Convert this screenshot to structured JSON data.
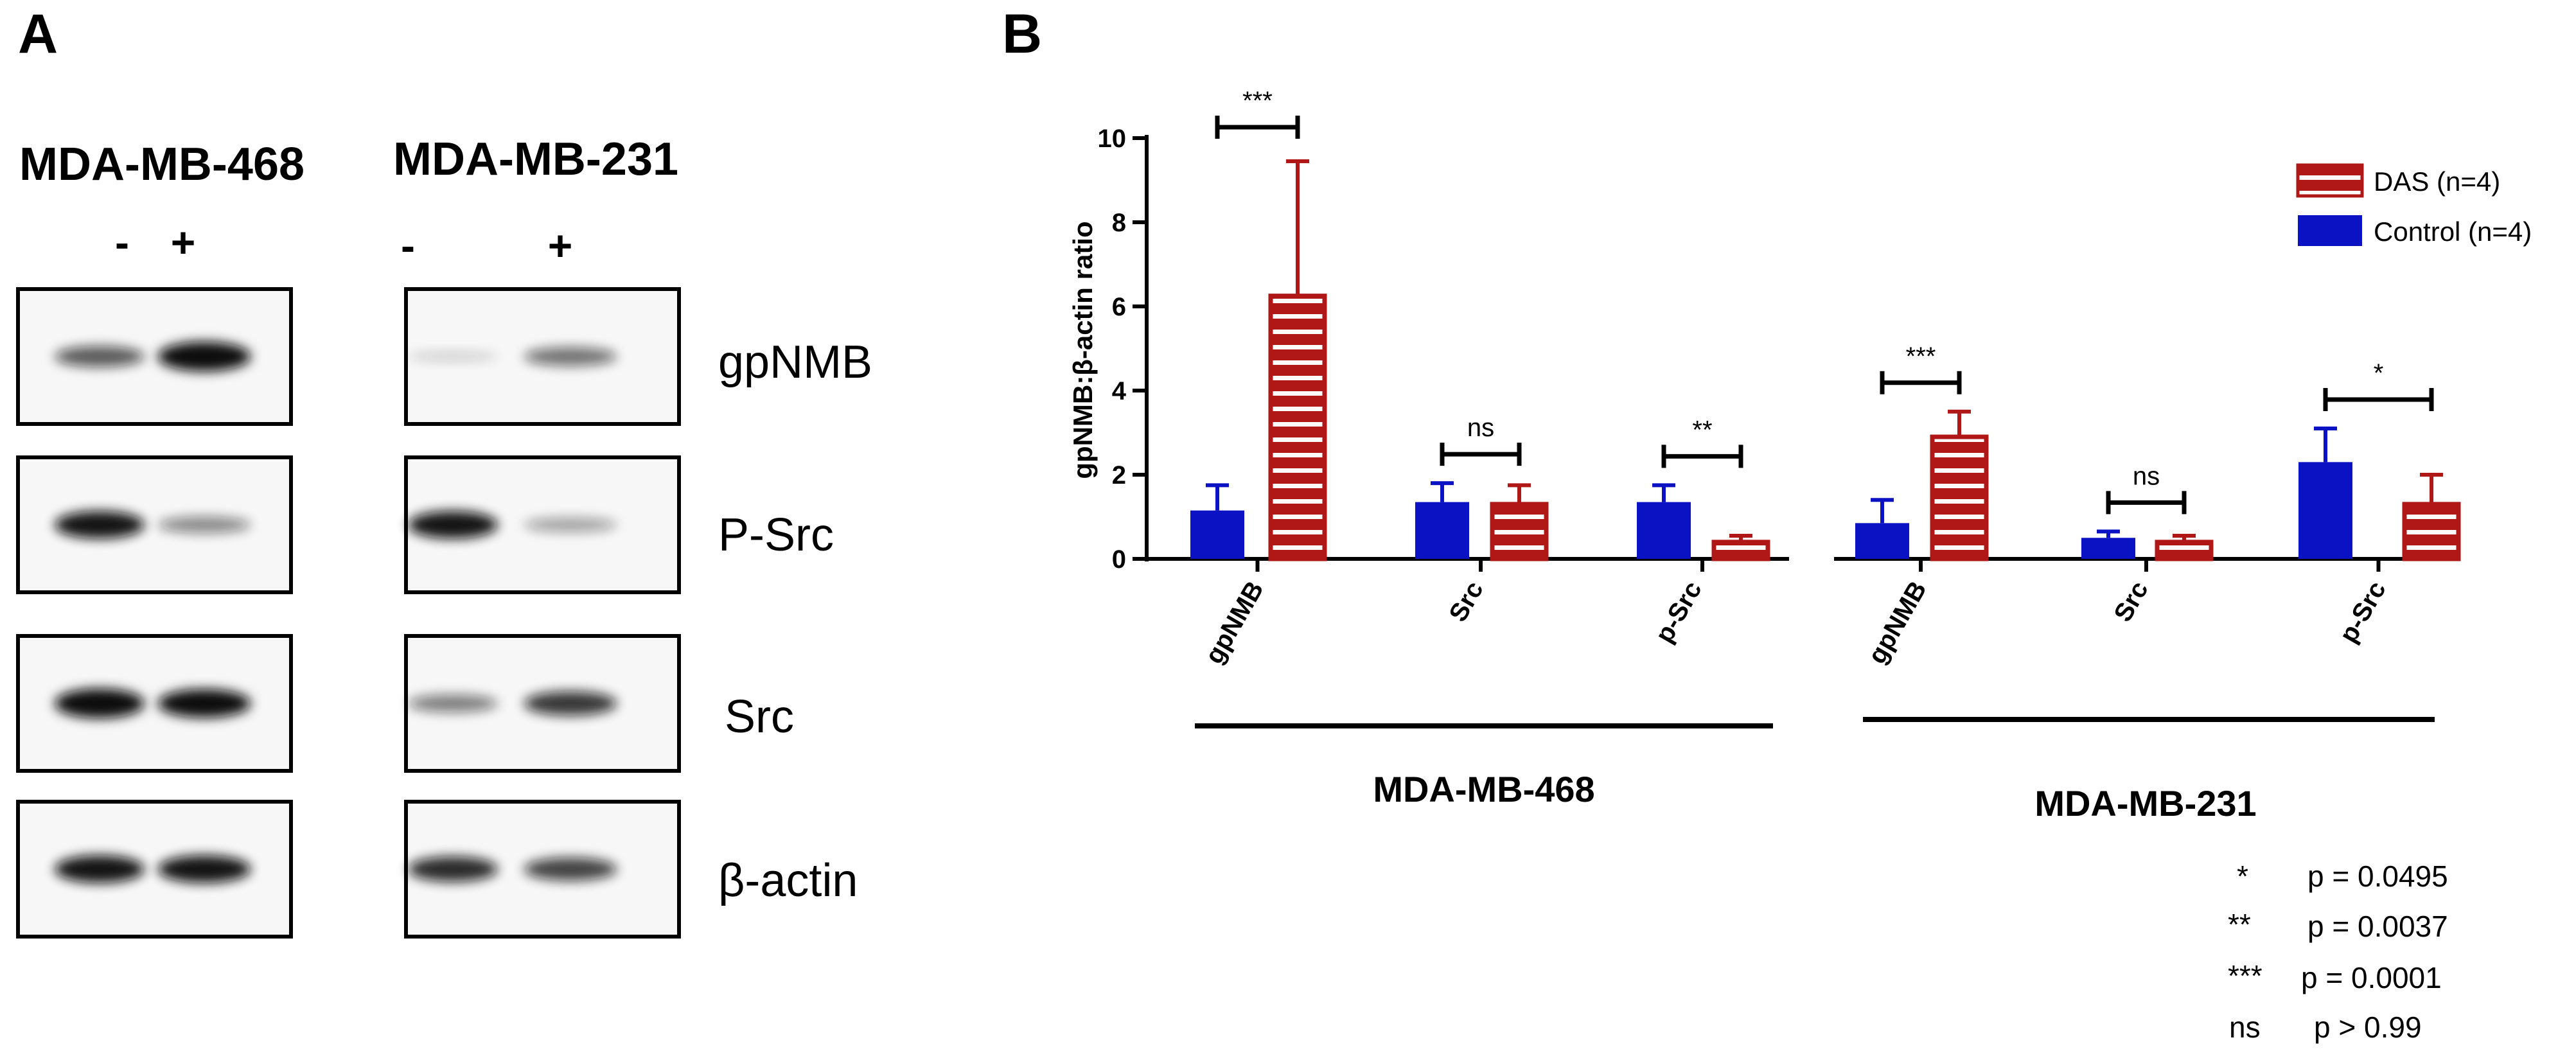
{
  "panel_a": {
    "letter": "A",
    "cell_lines": [
      {
        "name": "MDA-MB-468",
        "lanes": [
          "-",
          "+"
        ]
      },
      {
        "name": "MDA-MB-231",
        "lanes": [
          "-",
          "+"
        ]
      }
    ],
    "proteins": [
      "gpNMB",
      "P-Src",
      "Src",
      "β-actin"
    ],
    "blots": [
      [
        [
          0.55,
          0.95
        ],
        [
          0.85,
          0.35
        ],
        [
          0.95,
          0.9
        ],
        [
          0.85,
          0.85
        ]
      ],
      [
        [
          0.05,
          0.45
        ],
        [
          0.85,
          0.25
        ],
        [
          0.4,
          0.7
        ],
        [
          0.75,
          0.65
        ]
      ]
    ]
  },
  "panel_b": {
    "letter": "B",
    "colors": {
      "control": "#0b12c4",
      "das": "#b01717"
    },
    "chart_data": {
      "type": "bar",
      "ylabel": "gpNMB:β-actin ratio",
      "ylim": [
        0,
        10
      ],
      "yticks": [
        "0",
        "2",
        "4",
        "6",
        "8",
        "10"
      ],
      "legend": {
        "position": "top-right",
        "entries": [
          "DAS (n=4)",
          "Control (n=4)"
        ]
      },
      "groups": [
        {
          "name": "MDA-MB-468",
          "categories": [
            "gpNMB",
            "Src",
            "p-Src"
          ],
          "series": [
            {
              "name": "Control (n=4)",
              "values": [
                1.15,
                1.35,
                1.35
              ],
              "errors": [
                0.6,
                0.45,
                0.4
              ]
            },
            {
              "name": "DAS (n=4)",
              "values": [
                6.25,
                1.3,
                0.4
              ],
              "errors": [
                3.2,
                0.45,
                0.15
              ]
            }
          ],
          "significance": [
            "***",
            "ns",
            "**"
          ]
        },
        {
          "name": "MDA-MB-231",
          "categories": [
            "gpNMB",
            "Src",
            "p-Src"
          ],
          "series": [
            {
              "name": "Control (n=4)",
              "values": [
                0.85,
                0.5,
                2.3
              ],
              "errors": [
                0.55,
                0.15,
                0.8
              ]
            },
            {
              "name": "DAS (n=4)",
              "values": [
                2.9,
                0.4,
                1.3
              ],
              "errors": [
                0.6,
                0.15,
                0.7
              ]
            }
          ],
          "significance": [
            "***",
            "ns",
            "*"
          ]
        }
      ]
    },
    "pvalue_key": [
      {
        "mark": "*",
        "text": "p = 0.0495"
      },
      {
        "mark": "**",
        "text": "p = 0.0037"
      },
      {
        "mark": "***",
        "text": "p = 0.0001"
      },
      {
        "mark": "ns",
        "text": "p > 0.99"
      }
    ]
  }
}
